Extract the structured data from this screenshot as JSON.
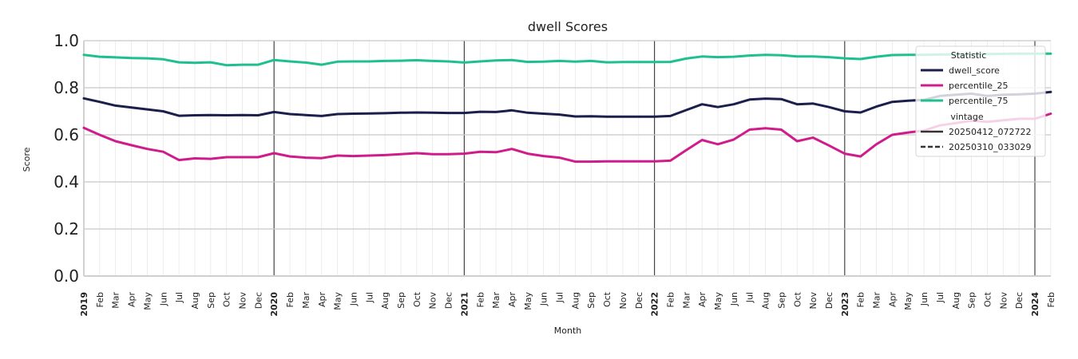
{
  "chart_data": {
    "type": "line",
    "title": "dwell Scores",
    "xlabel": "Month",
    "ylabel": "Score",
    "ylim": [
      0,
      1
    ],
    "yticks": [
      "0.0",
      "0.2",
      "0.4",
      "0.6",
      "0.8",
      "1.0"
    ],
    "grid": true,
    "legend_position": "top-right",
    "x_start": "2019-01",
    "x_end": "2024-02",
    "year_ticks": [
      "2019",
      "2020",
      "2021",
      "2022",
      "2023",
      "2024"
    ],
    "month_ticks": [
      "Feb",
      "Mar",
      "Apr",
      "May",
      "Jun",
      "Jul",
      "Aug",
      "Sep",
      "Oct",
      "Nov",
      "Dec"
    ],
    "legend": {
      "statistic_title": "Statistic",
      "vintage_title": "vintage",
      "vintage_entries": [
        {
          "label": "20250412_072722",
          "style": "solid"
        },
        {
          "label": "20250310_033029",
          "style": "dashed"
        }
      ]
    },
    "series": [
      {
        "name": "dwell_score",
        "color": "#1b1f4b",
        "values": [
          0.755,
          0.74,
          0.724,
          0.716,
          0.708,
          0.7,
          0.681,
          0.683,
          0.684,
          0.683,
          0.684,
          0.683,
          0.697,
          0.688,
          0.684,
          0.68,
          0.688,
          0.69,
          0.691,
          0.692,
          0.694,
          0.695,
          0.694,
          0.693,
          0.693,
          0.698,
          0.697,
          0.704,
          0.694,
          0.69,
          0.686,
          0.678,
          0.679,
          0.677,
          0.677,
          0.677,
          0.677,
          0.68,
          0.705,
          0.73,
          0.718,
          0.73,
          0.75,
          0.754,
          0.752,
          0.73,
          0.733,
          0.718,
          0.7,
          0.695,
          0.72,
          0.74,
          0.745,
          0.748,
          0.765,
          0.77,
          0.775,
          0.765,
          0.77,
          0.772,
          0.775,
          0.782
        ]
      },
      {
        "name": "percentile_25",
        "color": "#d01c8b",
        "values": [
          0.63,
          0.6,
          0.573,
          0.556,
          0.54,
          0.528,
          0.493,
          0.5,
          0.498,
          0.505,
          0.505,
          0.505,
          0.522,
          0.508,
          0.503,
          0.501,
          0.512,
          0.51,
          0.512,
          0.514,
          0.518,
          0.522,
          0.518,
          0.518,
          0.52,
          0.528,
          0.526,
          0.54,
          0.52,
          0.51,
          0.503,
          0.486,
          0.486,
          0.487,
          0.487,
          0.487,
          0.487,
          0.49,
          0.535,
          0.578,
          0.56,
          0.58,
          0.622,
          0.628,
          0.622,
          0.573,
          0.588,
          0.555,
          0.52,
          0.508,
          0.56,
          0.6,
          0.61,
          0.618,
          0.64,
          0.65,
          0.66,
          0.655,
          0.662,
          0.668,
          0.668,
          0.69
        ]
      },
      {
        "name": "percentile_75",
        "color": "#1fbf8f",
        "values": [
          0.94,
          0.932,
          0.929,
          0.926,
          0.925,
          0.921,
          0.908,
          0.906,
          0.908,
          0.896,
          0.898,
          0.898,
          0.918,
          0.912,
          0.907,
          0.898,
          0.911,
          0.912,
          0.912,
          0.914,
          0.915,
          0.917,
          0.914,
          0.912,
          0.907,
          0.912,
          0.916,
          0.918,
          0.91,
          0.911,
          0.914,
          0.911,
          0.914,
          0.908,
          0.909,
          0.909,
          0.909,
          0.91,
          0.924,
          0.933,
          0.93,
          0.932,
          0.937,
          0.94,
          0.938,
          0.933,
          0.933,
          0.93,
          0.925,
          0.922,
          0.932,
          0.939,
          0.94,
          0.94,
          0.941,
          0.942,
          0.943,
          0.943,
          0.944,
          0.945,
          0.945,
          0.945
        ]
      }
    ]
  }
}
